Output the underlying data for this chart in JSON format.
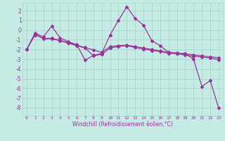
{
  "xlabel": "Windchill (Refroidissement éolien,°C)",
  "bg_color": "#c5ebe4",
  "grid_color": "#a8d5ce",
  "line_color": "#993399",
  "xlim": [
    -0.5,
    23.5
  ],
  "ylim": [
    -8.8,
    2.8
  ],
  "xticks": [
    0,
    1,
    2,
    3,
    4,
    5,
    6,
    7,
    8,
    9,
    10,
    11,
    12,
    13,
    14,
    15,
    16,
    17,
    18,
    19,
    20,
    21,
    22,
    23
  ],
  "yticks": [
    -8,
    -7,
    -6,
    -5,
    -4,
    -3,
    -2,
    -1,
    0,
    1,
    2
  ],
  "line1_x": [
    0,
    1,
    2,
    3,
    4,
    5,
    6,
    7,
    8,
    9,
    10,
    11,
    12,
    13,
    14,
    15,
    16,
    17,
    18,
    19,
    20,
    21,
    22,
    23
  ],
  "line1_y": [
    -2.0,
    -0.3,
    -0.7,
    0.4,
    -0.8,
    -1.2,
    -1.5,
    -3.1,
    -2.6,
    -2.4,
    -0.5,
    1.0,
    2.4,
    1.2,
    0.5,
    -1.1,
    -1.6,
    -2.3,
    -2.4,
    -2.4,
    -3.0,
    -5.8,
    -5.2,
    -8.0
  ],
  "line2_x": [
    0,
    1,
    2,
    3,
    4,
    5,
    6,
    7,
    8,
    9,
    10,
    11,
    12,
    13,
    14,
    15,
    16,
    17,
    18,
    19,
    20,
    21,
    22,
    23
  ],
  "line2_y": [
    -2.0,
    -0.5,
    -0.85,
    -0.85,
    -1.05,
    -1.3,
    -1.55,
    -1.8,
    -2.05,
    -2.3,
    -1.7,
    -1.6,
    -1.55,
    -1.7,
    -1.85,
    -2.0,
    -2.15,
    -2.3,
    -2.35,
    -2.45,
    -2.55,
    -2.65,
    -2.75,
    -2.85
  ],
  "line3_x": [
    0,
    1,
    2,
    3,
    4,
    5,
    6,
    7,
    8,
    9,
    10,
    11,
    12,
    13,
    14,
    15,
    16,
    17,
    18,
    19,
    20,
    21,
    22,
    23
  ],
  "line3_y": [
    -2.0,
    -0.4,
    -0.9,
    -0.9,
    -1.1,
    -1.35,
    -1.6,
    -1.85,
    -2.65,
    -2.5,
    -1.85,
    -1.7,
    -1.6,
    -1.8,
    -1.95,
    -2.1,
    -2.2,
    -2.4,
    -2.42,
    -2.58,
    -2.68,
    -2.78,
    -2.88,
    -3.05
  ]
}
